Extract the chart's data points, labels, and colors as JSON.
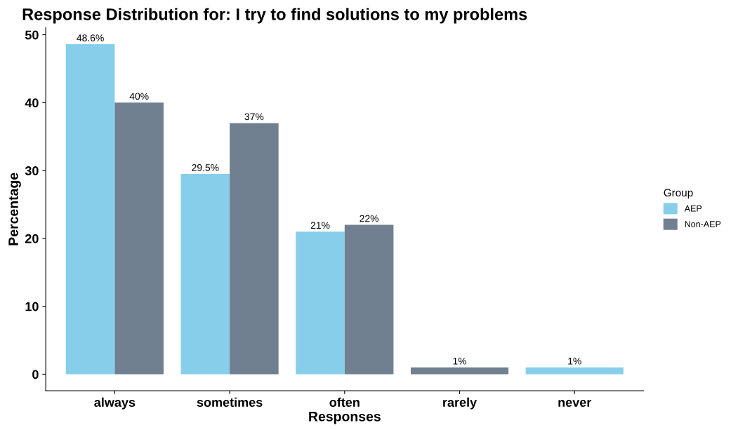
{
  "chart_data": {
    "type": "bar",
    "title": "Response Distribution for: I try to find solutions to my problems",
    "xlabel": "Responses",
    "ylabel": "Percentage",
    "legend_title": "Group",
    "categories": [
      "always",
      "sometimes",
      "often",
      "rarely",
      "never"
    ],
    "series": [
      {
        "name": "AEP",
        "color": "#87ceeb",
        "values": [
          48.6,
          29.5,
          21,
          null,
          1
        ],
        "value_labels": [
          "48.6%",
          "29.5%",
          "21%",
          null,
          "1%"
        ]
      },
      {
        "name": "Non-AEP",
        "color": "#708090",
        "values": [
          40,
          37,
          22,
          1,
          null
        ],
        "value_labels": [
          "40%",
          "37%",
          "22%",
          "1%",
          null
        ]
      }
    ],
    "ylim": [
      -2.43,
      51.03
    ],
    "yticks": [
      0,
      10,
      20,
      30,
      40,
      50
    ],
    "grid": false,
    "legend": "right"
  }
}
